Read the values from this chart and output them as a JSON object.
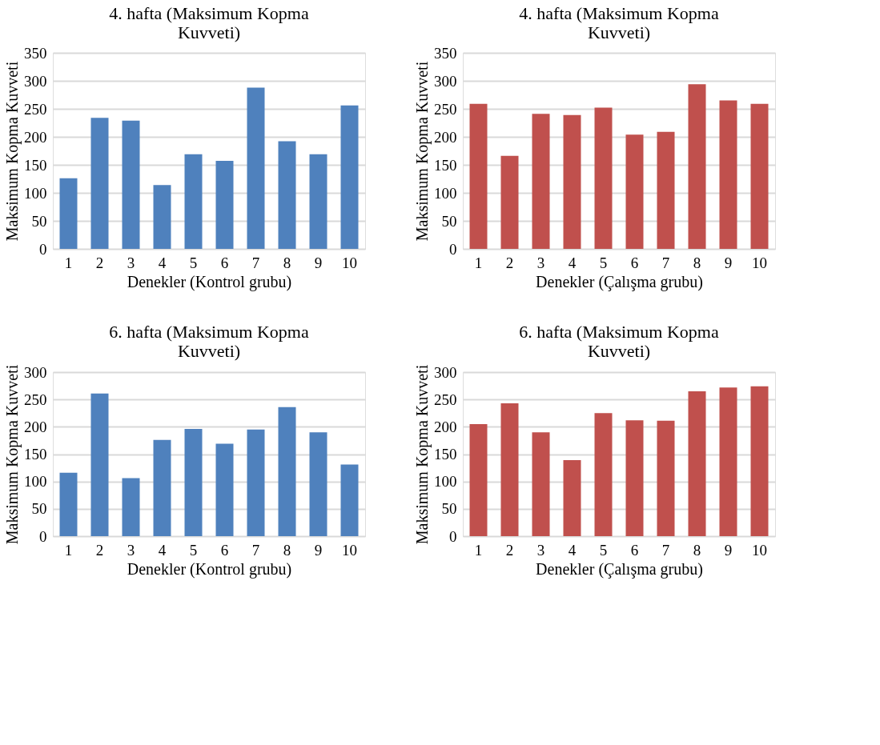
{
  "chart_data": [
    {
      "type": "bar",
      "title": "4. hafta (Maksimum Kopma Kuvveti)",
      "xlabel": "Denekler (Kontrol grubu)",
      "ylabel": "Maksimum Kopma Kuvveti",
      "categories": [
        "1",
        "2",
        "3",
        "4",
        "5",
        "6",
        "7",
        "8",
        "9",
        "10"
      ],
      "values": [
        126,
        234,
        229,
        114,
        169,
        157,
        288,
        192,
        169,
        256
      ],
      "color": "#4f81bd",
      "ylim": [
        0,
        350
      ],
      "yticks": [
        0,
        50,
        100,
        150,
        200,
        250,
        300,
        350
      ],
      "grid": "y"
    },
    {
      "type": "bar",
      "title": "4. hafta (Maksimum Kopma Kuvveti)",
      "xlabel": "Denekler (Çalışma grubu)",
      "ylabel": "Maksimum Kopma Kuvveti",
      "categories": [
        "1",
        "2",
        "3",
        "4",
        "5",
        "6",
        "7",
        "8",
        "9",
        "10"
      ],
      "values": [
        259,
        166,
        241,
        239,
        252,
        204,
        209,
        294,
        265,
        259
      ],
      "color": "#c0504d",
      "ylim": [
        0,
        350
      ],
      "yticks": [
        0,
        50,
        100,
        150,
        200,
        250,
        300,
        350
      ],
      "grid": "y"
    },
    {
      "type": "bar",
      "title": "6. hafta (Maksimum Kopma Kuvveti)",
      "xlabel": "Denekler (Kontrol grubu)",
      "ylabel": "Maksimum Kopma Kuvveti",
      "categories": [
        "1",
        "2",
        "3",
        "4",
        "5",
        "6",
        "7",
        "8",
        "9",
        "10"
      ],
      "values": [
        116,
        261,
        106,
        176,
        196,
        169,
        195,
        236,
        190,
        131
      ],
      "color": "#4f81bd",
      "ylim": [
        0,
        300
      ],
      "yticks": [
        0,
        50,
        100,
        150,
        200,
        250,
        300
      ],
      "grid": "y"
    },
    {
      "type": "bar",
      "title": "6. hafta (Maksimum Kopma Kuvveti)",
      "xlabel": "Denekler (Çalışma grubu)",
      "ylabel": "Maksimum Kopma Kuvveti",
      "categories": [
        "1",
        "2",
        "3",
        "4",
        "5",
        "6",
        "7",
        "8",
        "9",
        "10"
      ],
      "values": [
        205,
        243,
        190,
        139,
        225,
        212,
        211,
        265,
        272,
        274
      ],
      "color": "#c0504d",
      "ylim": [
        0,
        300
      ],
      "yticks": [
        0,
        50,
        100,
        150,
        200,
        250,
        300
      ],
      "grid": "y"
    }
  ]
}
